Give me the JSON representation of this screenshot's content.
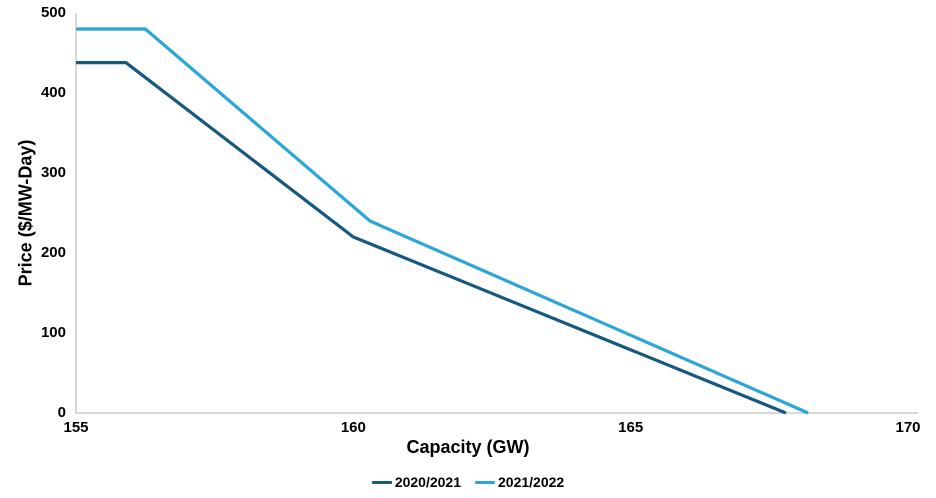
{
  "chart_data": {
    "type": "line",
    "title": "",
    "xlabel": "Capacity (GW)",
    "ylabel": "Price ($/MW-Day)",
    "xlim": [
      155,
      170
    ],
    "ylim": [
      0,
      500
    ],
    "xticks": [
      155,
      160,
      165,
      170
    ],
    "yticks": [
      0,
      100,
      200,
      300,
      400,
      500
    ],
    "grid": false,
    "legend_position": "bottom-center",
    "axis_color": "#BFBFBF",
    "series": [
      {
        "name": "2020/2021",
        "color": "#165880",
        "points": [
          [
            155,
            438
          ],
          [
            155.9,
            438
          ],
          [
            160.0,
            220
          ],
          [
            167.8,
            0
          ]
        ]
      },
      {
        "name": "2021/2022",
        "color": "#2AA7D6",
        "points": [
          [
            155,
            480
          ],
          [
            156.25,
            480
          ],
          [
            160.3,
            240
          ],
          [
            168.2,
            0
          ]
        ]
      }
    ]
  }
}
